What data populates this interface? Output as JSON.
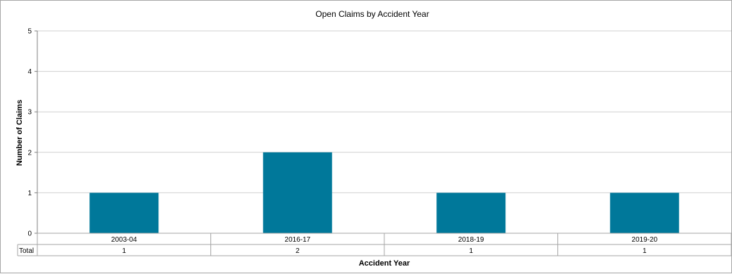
{
  "chart_data": {
    "type": "bar",
    "title": "Open Claims by Accident Year",
    "xlabel": "Accident Year",
    "ylabel": "Number of Claims",
    "categories": [
      "2003-04",
      "2016-17",
      "2018-19",
      "2019-20"
    ],
    "series": [
      {
        "name": "Total",
        "values": [
          1,
          2,
          1,
          1
        ]
      }
    ],
    "ylim": [
      0,
      5
    ],
    "yticks": [
      0,
      1,
      2,
      3,
      4,
      5
    ],
    "grid": true,
    "legend": "data-table",
    "bar_color": "#00789a",
    "gridline_color": "#d0d0d0"
  }
}
